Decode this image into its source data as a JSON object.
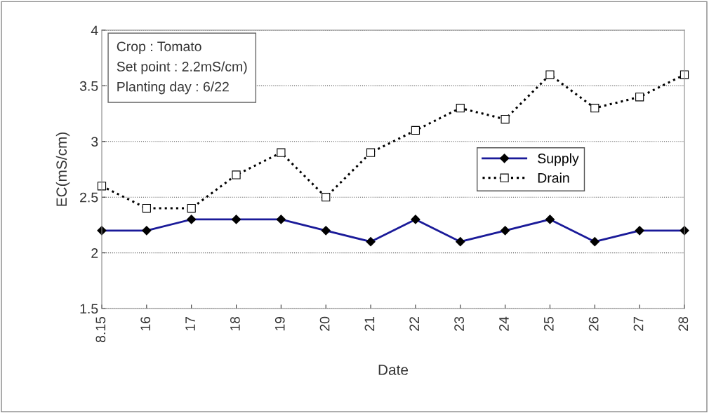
{
  "chart_data": {
    "type": "line",
    "xlabel": "Date",
    "ylabel": "EC(mS/cm)",
    "categories": [
      "8.15",
      "16",
      "17",
      "18",
      "19",
      "20",
      "21",
      "22",
      "23",
      "24",
      "25",
      "26",
      "27",
      "28"
    ],
    "series": [
      {
        "name": "Supply",
        "color": "#1a1a99",
        "marker": "diamond",
        "line_style": "solid",
        "values": [
          2.2,
          2.2,
          2.3,
          2.3,
          2.3,
          2.2,
          2.1,
          2.3,
          2.1,
          2.2,
          2.3,
          2.1,
          2.2,
          2.2
        ]
      },
      {
        "name": "Drain",
        "color": "#000000",
        "marker": "square",
        "line_style": "dotted",
        "values": [
          2.6,
          2.4,
          2.4,
          2.7,
          2.9,
          2.5,
          2.9,
          3.1,
          3.3,
          3.2,
          3.6,
          3.3,
          3.4,
          3.6
        ]
      }
    ],
    "ylim": [
      1.5,
      4
    ],
    "yticks": [
      1.5,
      2,
      2.5,
      3,
      3.5,
      4
    ],
    "grid": "y",
    "legend": "right",
    "annotations": [
      "Crop : Tomato\nSet point : 2.2mS/cm)\nPlanting day : 6/22"
    ]
  }
}
